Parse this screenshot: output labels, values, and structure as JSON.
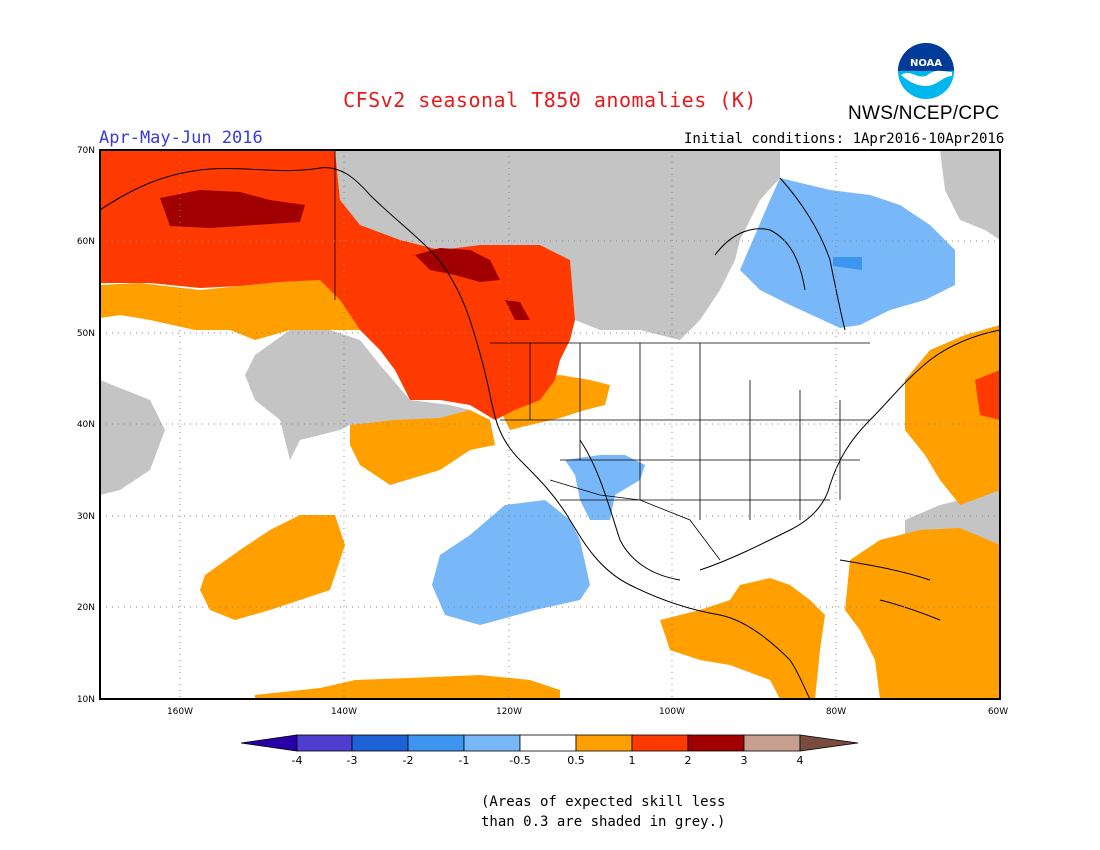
{
  "header": {
    "title": "CFSv2 seasonal T850 anomalies (K)",
    "agency": "NWS/NCEP/CPC",
    "logo_text": "NOAA",
    "period": "Apr-May-Jun 2016",
    "initial_conditions": "Initial conditions: 1Apr2016-10Apr2016"
  },
  "map": {
    "lat_labels": [
      "70N",
      "60N",
      "50N",
      "40N",
      "30N",
      "20N",
      "10N"
    ],
    "lon_labels": [
      "160W",
      "140W",
      "120W",
      "100W",
      "80W",
      "60W"
    ],
    "lat_range": [
      10,
      70
    ],
    "lon_range": [
      -172,
      -60
    ],
    "grid_lines": "dotted",
    "regions": [
      {
        "name": "Alaska / Gulf of Alaska warm",
        "category": "1 to 2 K",
        "color": "#ff3a00"
      },
      {
        "name": "Western Alaska core",
        "category": "2 to 3 K",
        "color": "#a00000"
      },
      {
        "name": "British Columbia / Pacific NW warm",
        "category": "1 to 2 K",
        "color": "#ff3a00"
      },
      {
        "name": "Northern BC core",
        "category": "2 to 3 K",
        "color": "#a00000"
      },
      {
        "name": "Hudson Bay cool",
        "category": "-1 to -0.5 K",
        "color": "#78b8f8"
      },
      {
        "name": "Baja California / Eastern Pacific cool",
        "category": "-1 to -0.5 K",
        "color": "#78b8f8"
      },
      {
        "name": "Southwest US cool",
        "category": "-1 to -0.5 K",
        "color": "#78b8f8"
      },
      {
        "name": "Hawaii region warm",
        "category": "0.5 to 1 K",
        "color": "#ff9f00"
      },
      {
        "name": "Caribbean / Central America warm",
        "category": "0.5 to 1 K",
        "color": "#ff9f00"
      },
      {
        "name": "Western Atlantic warm",
        "category": "0.5 to 1 K",
        "color": "#ff9f00"
      },
      {
        "name": "Low skill areas",
        "category": "skill < 0.3",
        "color": "#c4c4c4"
      }
    ]
  },
  "legend": {
    "tick_labels": [
      "-4",
      "-3",
      "-2",
      "-1",
      "-0.5",
      "0.5",
      "1",
      "2",
      "3",
      "4"
    ],
    "colors": [
      "#2800a8",
      "#4d3ed0",
      "#1e62d8",
      "#3c96f0",
      "#78b8f8",
      "#ffffff",
      "#ff9f00",
      "#ff3a00",
      "#a00000",
      "#c8a090",
      "#7a4c40"
    ]
  },
  "footnote": {
    "line1": "(Areas of expected skill less",
    "line2": "than 0.3 are shaded in grey.)"
  }
}
